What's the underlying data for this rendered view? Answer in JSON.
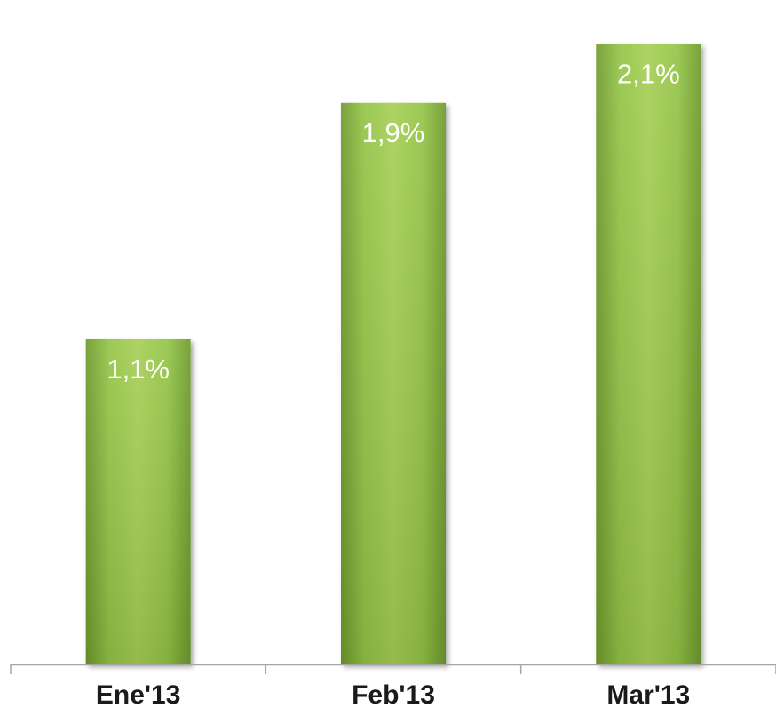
{
  "chart_data": {
    "type": "bar",
    "categories": [
      "Ene'13",
      "Feb'13",
      "Mar'13"
    ],
    "values": [
      1.1,
      1.9,
      2.1
    ],
    "data_labels": [
      "1,1%",
      "1,9%",
      "2,1%"
    ],
    "title": "",
    "xlabel": "",
    "ylabel": "",
    "ylim": [
      0,
      2.2
    ],
    "grid": false,
    "legend": "none",
    "colors": {
      "bar_light": "#a6cf55",
      "bar_mid": "#8dbb3f",
      "bar_dark": "#6e9a2c",
      "label": "#ffffff",
      "axis": "#a6a6a6",
      "category_text": "#1a1a1a"
    }
  }
}
